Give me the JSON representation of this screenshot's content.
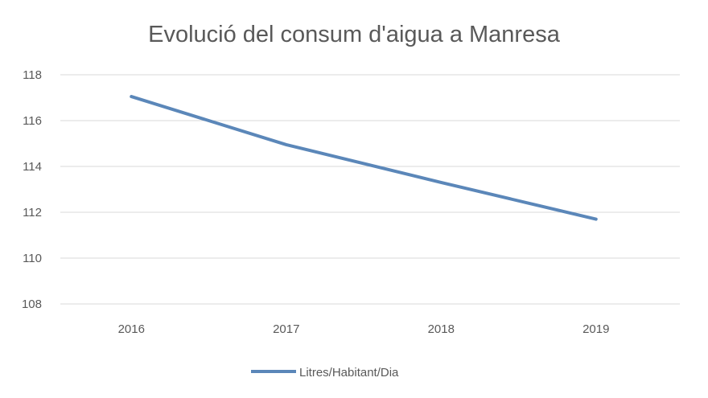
{
  "chart_data": {
    "type": "line",
    "title": "Evolució del consum d'aigua a Manresa",
    "categories": [
      "2016",
      "2017",
      "2018",
      "2019"
    ],
    "series": [
      {
        "name": "Litres/Habitant/Dia",
        "values": [
          117.05,
          114.95,
          113.3,
          111.7
        ],
        "color": "#5b87b9"
      }
    ],
    "ylim": [
      108,
      118
    ],
    "yticks": [
      108,
      110,
      112,
      114,
      116,
      118
    ],
    "grid": true,
    "legend": "bottom",
    "xlabel": "",
    "ylabel": ""
  }
}
